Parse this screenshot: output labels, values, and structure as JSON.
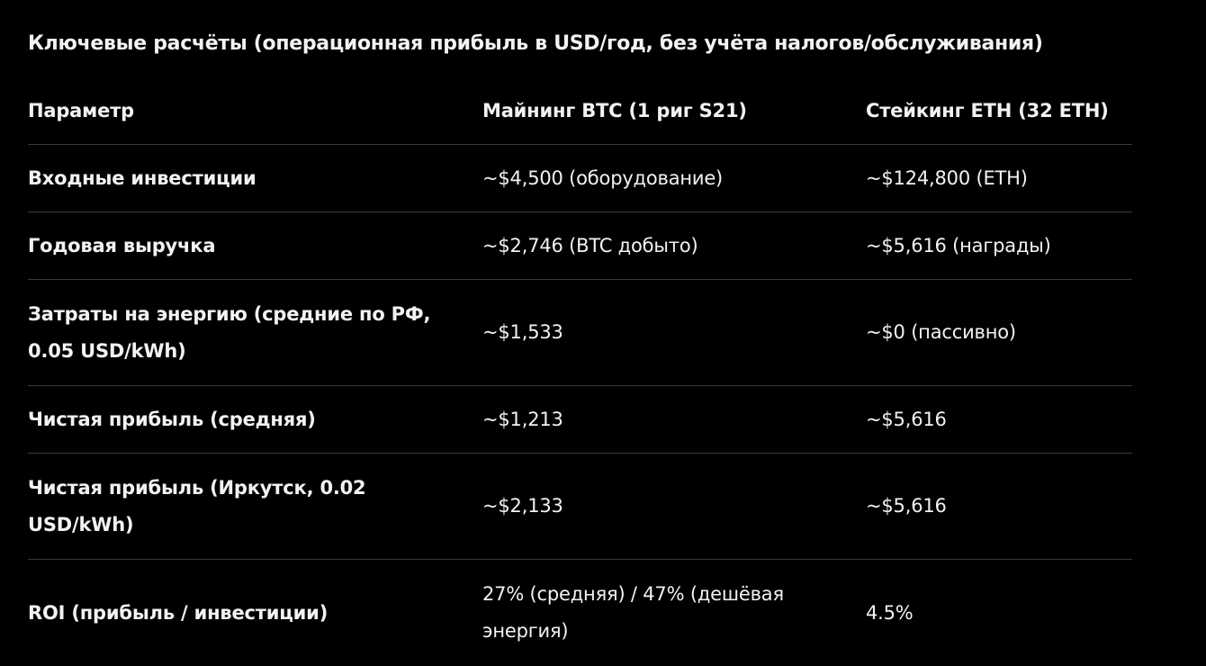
{
  "heading": "Ключевые расчёты (операционная прибыль в USD/год, без учёта налогов/обслуживания)",
  "table": {
    "headers": [
      "Параметр",
      "Майнинг BTC (1 риг S21)",
      "Стейкинг ETH (32 ETH)"
    ],
    "rows": [
      [
        "Входные инвестиции",
        "~$4,500 (оборудование)",
        "~$124,800 (ETH)"
      ],
      [
        "Годовая выручка",
        "~$2,746 (BTC добыто)",
        "~$5,616 (награды)"
      ],
      [
        "Затраты на энергию (средние по РФ, 0.05 USD/kWh)",
        "~$1,533",
        "~$0 (пассивно)"
      ],
      [
        "Чистая прибыль (средняя)",
        "~$1,213",
        "~$5,616"
      ],
      [
        "Чистая прибыль (Иркутск, 0.02 USD/kWh)",
        "~$2,133",
        "~$5,616"
      ],
      [
        "ROI (прибыль / инвестиции)",
        "27% (средняя) / 47% (дешёвая энергия)",
        "4.5%"
      ]
    ]
  },
  "colors": {
    "background": "#000000",
    "text": "#f2f2f2",
    "divider": "#3a3a3a"
  }
}
